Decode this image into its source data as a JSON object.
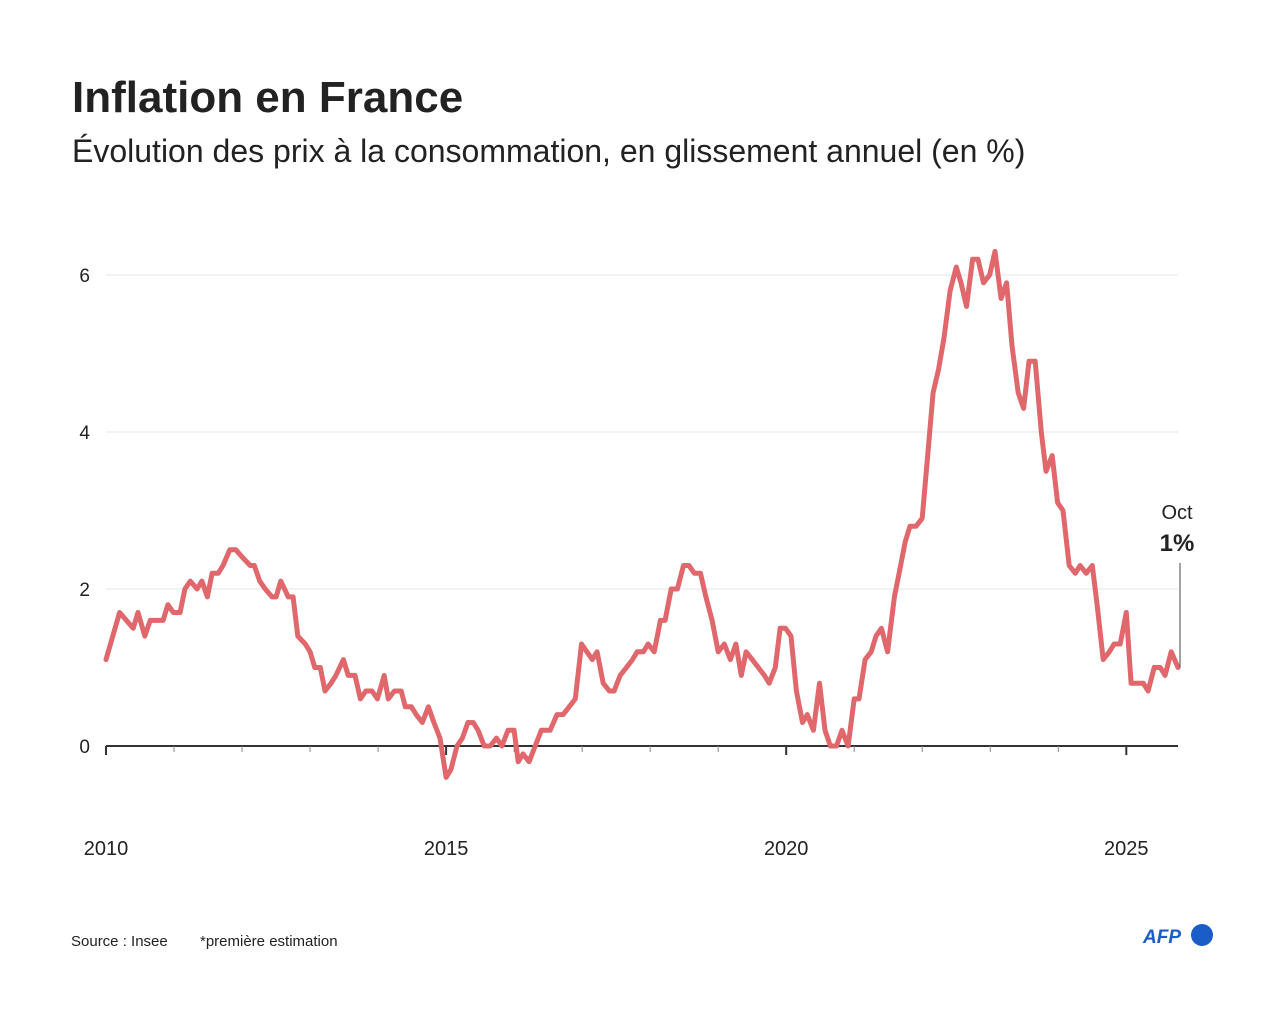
{
  "chart_data": {
    "type": "line",
    "title": "Inflation en France",
    "subtitle": "Évolution des prix à la consommation, en glissement annuel (en %)",
    "x": [
      2010.0,
      2010.2,
      2010.4,
      2010.47,
      2010.57,
      2010.65,
      2010.84,
      2010.91,
      2010.99,
      2011.09,
      2011.16,
      2011.24,
      2011.34,
      2011.41,
      2011.49,
      2011.56,
      2011.65,
      2011.72,
      2011.82,
      2011.91,
      2012.01,
      2012.12,
      2012.18,
      2012.26,
      2012.34,
      2012.44,
      2012.5,
      2012.57,
      2012.68,
      2012.75,
      2012.82,
      2012.93,
      2013.0,
      2013.07,
      2013.15,
      2013.22,
      2013.31,
      2013.38,
      2013.49,
      2013.56,
      2013.66,
      2013.74,
      2013.82,
      2013.91,
      2013.99,
      2014.09,
      2014.15,
      2014.24,
      2014.34,
      2014.4,
      2014.49,
      2014.56,
      2014.65,
      2014.74,
      2014.82,
      2014.91,
      2015.0,
      2015.07,
      2015.16,
      2015.24,
      2015.32,
      2015.4,
      2015.47,
      2015.56,
      2015.65,
      2015.74,
      2015.82,
      2015.91,
      2016.0,
      2016.06,
      2016.13,
      2016.22,
      2016.31,
      2016.4,
      2016.53,
      2016.63,
      2016.72,
      2016.81,
      2016.9,
      2016.99,
      2017.07,
      2017.15,
      2017.22,
      2017.31,
      2017.4,
      2017.47,
      2017.56,
      2017.65,
      2017.74,
      2017.81,
      2017.9,
      2017.97,
      2018.06,
      2018.15,
      2018.22,
      2018.31,
      2018.4,
      2018.49,
      2018.57,
      2018.65,
      2018.74,
      2018.82,
      2018.91,
      2019.0,
      2019.09,
      2019.18,
      2019.26,
      2019.34,
      2019.41,
      2019.5,
      2019.59,
      2019.68,
      2019.75,
      2019.84,
      2019.91,
      2019.99,
      2020.07,
      2020.15,
      2020.24,
      2020.31,
      2020.4,
      2020.49,
      2020.57,
      2020.65,
      2020.74,
      2020.82,
      2020.91,
      2021.0,
      2021.07,
      2021.16,
      2021.25,
      2021.32,
      2021.4,
      2021.49,
      2021.59,
      2021.66,
      2021.75,
      2021.82,
      2021.91,
      2022.0,
      2022.07,
      2022.16,
      2022.24,
      2022.32,
      2022.41,
      2022.5,
      2022.57,
      2022.65,
      2022.74,
      2022.82,
      2022.9,
      2022.99,
      2023.07,
      2023.16,
      2023.24,
      2023.32,
      2023.41,
      2023.49,
      2023.57,
      2023.66,
      2023.75,
      2023.82,
      2023.91,
      2023.99,
      2024.07,
      2024.16,
      2024.25,
      2024.32,
      2024.41,
      2024.5,
      2024.57,
      2024.66,
      2024.75,
      2024.82,
      2024.91,
      2025.0,
      2025.07,
      2025.16,
      2025.25,
      2025.32,
      2025.41,
      2025.5,
      2025.57,
      2025.66,
      2025.76
    ],
    "series": [
      {
        "color": "#e0676b",
        "values": [
          1.1,
          1.7,
          1.5,
          1.7,
          1.4,
          1.6,
          1.6,
          1.8,
          1.7,
          1.7,
          2.0,
          2.1,
          2.0,
          2.1,
          1.9,
          2.2,
          2.2,
          2.3,
          2.5,
          2.5,
          2.4,
          2.3,
          2.3,
          2.1,
          2.0,
          1.9,
          1.9,
          2.1,
          1.9,
          1.9,
          1.4,
          1.3,
          1.2,
          1.0,
          1.0,
          0.7,
          0.8,
          0.9,
          1.1,
          0.9,
          0.9,
          0.6,
          0.7,
          0.7,
          0.6,
          0.9,
          0.6,
          0.7,
          0.7,
          0.5,
          0.5,
          0.4,
          0.3,
          0.5,
          0.3,
          0.1,
          -0.4,
          -0.3,
          0.0,
          0.1,
          0.3,
          0.3,
          0.2,
          0.0,
          0.0,
          0.1,
          0.0,
          0.2,
          0.2,
          -0.2,
          -0.1,
          -0.2,
          0.0,
          0.2,
          0.2,
          0.4,
          0.4,
          0.5,
          0.6,
          1.3,
          1.2,
          1.1,
          1.2,
          0.8,
          0.7,
          0.7,
          0.9,
          1.0,
          1.1,
          1.2,
          1.2,
          1.3,
          1.2,
          1.6,
          1.6,
          2.0,
          2.0,
          2.3,
          2.3,
          2.2,
          2.2,
          1.9,
          1.6,
          1.2,
          1.3,
          1.1,
          1.3,
          0.9,
          1.2,
          1.1,
          1.0,
          0.9,
          0.8,
          1.0,
          1.5,
          1.5,
          1.4,
          0.7,
          0.3,
          0.4,
          0.2,
          0.8,
          0.2,
          0.0,
          0.0,
          0.2,
          0.0,
          0.6,
          0.6,
          1.1,
          1.2,
          1.4,
          1.5,
          1.2,
          1.9,
          2.2,
          2.6,
          2.8,
          2.8,
          2.9,
          3.6,
          4.5,
          4.8,
          5.2,
          5.8,
          6.1,
          5.9,
          5.6,
          6.2,
          6.2,
          5.9,
          6.0,
          6.3,
          5.7,
          5.9,
          5.1,
          4.5,
          4.3,
          4.9,
          4.9,
          4.0,
          3.5,
          3.7,
          3.1,
          3.0,
          2.3,
          2.2,
          2.3,
          2.2,
          2.3,
          1.8,
          1.1,
          1.2,
          1.3,
          1.3,
          1.7,
          0.8,
          0.8,
          0.8,
          0.7,
          1.0,
          1.0,
          0.9,
          1.2,
          1.0
        ],
        "value_labels": [
          null,
          null,
          null,
          null,
          null,
          null,
          null,
          null,
          null,
          null,
          null,
          null,
          null,
          null,
          null,
          null,
          null,
          null,
          null,
          null,
          null,
          null,
          null,
          null,
          null,
          null,
          null,
          null,
          null,
          null,
          null,
          null,
          null,
          null,
          null,
          null,
          null,
          null,
          null,
          null,
          null,
          null,
          null,
          null,
          null,
          null,
          null,
          null,
          null,
          null,
          null,
          null,
          null,
          null,
          null,
          null,
          null,
          null,
          null,
          null,
          null,
          null,
          null,
          null,
          null,
          null,
          null,
          null,
          null,
          null,
          null,
          null,
          null,
          null,
          null,
          null,
          null,
          null,
          null,
          null,
          null,
          null,
          null,
          null,
          null,
          null,
          null,
          null,
          null,
          null,
          null,
          null,
          null,
          null,
          null,
          null,
          null,
          null,
          null,
          null,
          null,
          null,
          null,
          null,
          null,
          null,
          null,
          null,
          null,
          null,
          null,
          null,
          null,
          null,
          null,
          null,
          null,
          null,
          null,
          null,
          null,
          null,
          null,
          null,
          null,
          null,
          null,
          null,
          null,
          null,
          null,
          null,
          null,
          null,
          null,
          null,
          null,
          null,
          null,
          null,
          null,
          null,
          null,
          null,
          null,
          null,
          null,
          null,
          null,
          null,
          null,
          null,
          null,
          null,
          null,
          null,
          null,
          null,
          null,
          null,
          null,
          null,
          null,
          null,
          null,
          null,
          null,
          null,
          null,
          null,
          null,
          null,
          null,
          null,
          null,
          null,
          null,
          null,
          null,
          null,
          null,
          null,
          null,
          null,
          "1%"
        ]
      }
    ],
    "annotation": "Oct",
    "xlim": [
      2010,
      2025.76
    ],
    "xticks": [
      2010,
      2015,
      2020,
      2025
    ],
    "x_minor_ticks": [
      2011,
      2012,
      2013,
      2014,
      2016,
      2017,
      2018,
      2019,
      2021,
      2022,
      2023,
      2024
    ],
    "ylim": [
      -0.6,
      6.6
    ],
    "yticks": [
      0,
      2,
      4,
      6
    ],
    "grid": true,
    "source": "Source : Insee",
    "note": "*première estimation",
    "logo": "AFP"
  }
}
